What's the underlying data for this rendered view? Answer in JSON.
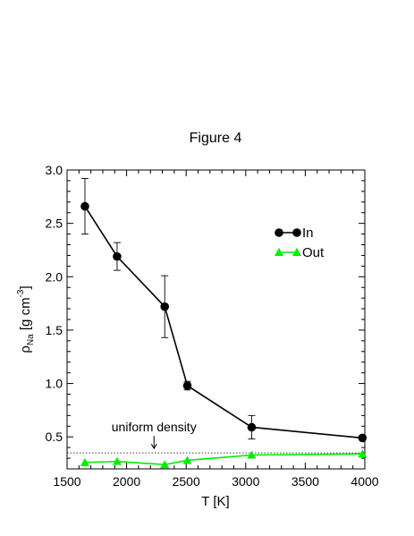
{
  "chart_data": {
    "type": "line",
    "title": "Figure 4",
    "xlabel": "T [K]",
    "ylabel": {
      "prefix": "ρ",
      "subscript": "Na",
      "unit_open": " [g cm",
      "superscript": "-3",
      "unit_close": "]"
    },
    "xlim": [
      1500,
      4000
    ],
    "ylim": [
      0.2,
      3.0
    ],
    "x_ticks": [
      1500,
      2000,
      2500,
      3000,
      3500,
      4000
    ],
    "x_tick_labels": [
      "1500",
      "2000",
      "2500",
      "3000",
      "3500",
      "4000"
    ],
    "y_ticks": [
      0.5,
      1.0,
      1.5,
      2.0,
      2.5,
      3.0
    ],
    "y_tick_labels": [
      "0.5",
      "1.0",
      "1.5",
      "2.0",
      "2.5",
      "3.0"
    ],
    "grid": false,
    "legend_position": "upper-right",
    "series": [
      {
        "name": "In",
        "color": "#000000",
        "marker": "circle",
        "x": [
          1650,
          1920,
          2320,
          2510,
          3050,
          3980
        ],
        "y": [
          2.66,
          2.19,
          1.72,
          0.98,
          0.59,
          0.49
        ],
        "yerr": [
          0.26,
          0.13,
          0.29,
          0.04,
          0.11,
          0.02
        ]
      },
      {
        "name": "Out",
        "color": "#00ee00",
        "marker": "triangle",
        "x": [
          1650,
          1920,
          2320,
          2510,
          3050,
          3980
        ],
        "y": [
          0.26,
          0.27,
          0.24,
          0.28,
          0.33,
          0.34
        ]
      }
    ],
    "reference_line": {
      "label": "uniform density",
      "y": 0.35,
      "style": "dotted",
      "annotation_x": 2230
    }
  }
}
